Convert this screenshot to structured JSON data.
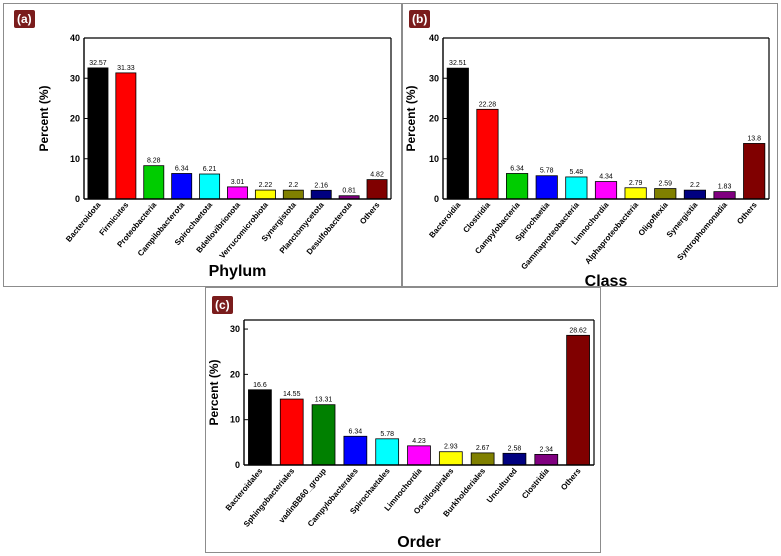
{
  "chart_data": [
    {
      "type": "bar",
      "badge": "(a)",
      "title": "",
      "xlabel": "Phylum",
      "ylabel": "Percent (%)",
      "ylim": [
        0,
        40
      ],
      "yticks": [
        0,
        10,
        20,
        30,
        40
      ],
      "categories": [
        "Bacteroidota",
        "Firmicutes",
        "Proteobacteria",
        "Campilobacterota",
        "Spirochaetota",
        "Bdellovibrionota",
        "Verrucomicrobiota",
        "Synergistota",
        "Planctomycetota",
        "Desulfobacterota",
        "Others"
      ],
      "values": [
        32.57,
        31.33,
        8.28,
        6.34,
        6.21,
        3.01,
        2.22,
        2.2,
        2.16,
        0.81,
        4.82
      ],
      "value_labels": [
        "32.57",
        "31.33",
        "8.28",
        "6.34",
        "6.21",
        "3.01",
        "2.22",
        "2.2",
        "2.16",
        "0.81",
        "4.82"
      ],
      "colors": [
        "#000000",
        "#ff0000",
        "#00cc00",
        "#0000ff",
        "#00ffff",
        "#ff00ff",
        "#ffff00",
        "#808000",
        "#000080",
        "#800080",
        "#800000"
      ]
    },
    {
      "type": "bar",
      "badge": "(b)",
      "title": "",
      "xlabel": "Class",
      "ylabel": "Percent (%)",
      "ylim": [
        0,
        40
      ],
      "yticks": [
        0,
        10,
        20,
        30,
        40
      ],
      "categories": [
        "Bacteroidia",
        "Clostridia",
        "Campylobacteria",
        "Spirochaetia",
        "Gammaproteobacteria",
        "Limnochordia",
        "Alphaproteobacteria",
        "Oligoflexia",
        "Synergistia",
        "Syntrophomonadia",
        "Others"
      ],
      "values": [
        32.51,
        22.28,
        6.34,
        5.78,
        5.48,
        4.34,
        2.79,
        2.59,
        2.2,
        1.83,
        13.8
      ],
      "value_labels": [
        "32.51",
        "22.28",
        "6.34",
        "5.78",
        "5.48",
        "4.34",
        "2.79",
        "2.59",
        "2.2",
        "1.83",
        "13.8"
      ],
      "colors": [
        "#000000",
        "#ff0000",
        "#00cc00",
        "#0000ff",
        "#00ffff",
        "#ff00ff",
        "#ffff00",
        "#808000",
        "#000080",
        "#800080",
        "#800000"
      ]
    },
    {
      "type": "bar",
      "badge": "(c)",
      "title": "",
      "xlabel": "Order",
      "ylabel": "Percent (%)",
      "ylim": [
        0,
        32
      ],
      "yticks": [
        0,
        10,
        20,
        30
      ],
      "categories": [
        "Bacteroidales",
        "Sphingobacteriales",
        "vadinBB60_group",
        "Campylobacterales",
        "Spirochaetales",
        "Limnochordia",
        "Oscillospirales",
        "Burkholderiales",
        "Uncultured",
        "Clostridia",
        "Others"
      ],
      "values": [
        16.6,
        14.55,
        13.31,
        6.34,
        5.78,
        4.23,
        2.93,
        2.67,
        2.58,
        2.34,
        28.62
      ],
      "value_labels": [
        "16.6",
        "14.55",
        "13.31",
        "6.34",
        "5.78",
        "4.23",
        "2.93",
        "2.67",
        "2.58",
        "2.34",
        "28.62"
      ],
      "colors": [
        "#000000",
        "#ff0000",
        "#008000",
        "#0000ff",
        "#00ffff",
        "#ff00ff",
        "#ffff00",
        "#808000",
        "#000080",
        "#800080",
        "#800000"
      ]
    }
  ]
}
